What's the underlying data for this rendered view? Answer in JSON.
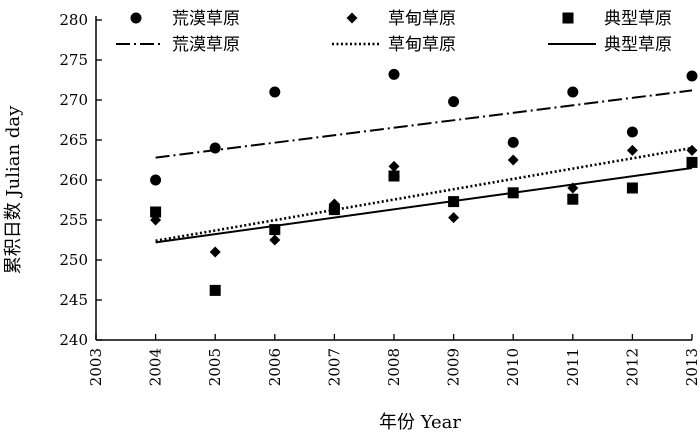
{
  "chart_data": {
    "type": "scatter",
    "x": [
      2004,
      2005,
      2006,
      2007,
      2008,
      2009,
      2010,
      2011,
      2012,
      2013
    ],
    "xlim": [
      2003,
      2013
    ],
    "ylim": [
      240,
      280
    ],
    "xticks": [
      "2003",
      "2004",
      "2005",
      "2006",
      "2007",
      "2008",
      "2009",
      "2010",
      "2011",
      "2012",
      "2013"
    ],
    "yticks": [
      "240",
      "245",
      "250",
      "255",
      "260",
      "265",
      "270",
      "275",
      "280"
    ],
    "xlabel": "年份 Year",
    "ylabel": "累积日数 Julian day",
    "grid": false,
    "legend_position": "top",
    "series": [
      {
        "name": "荒漠草原",
        "marker": "circle",
        "values": [
          260,
          264,
          271,
          256.5,
          273.2,
          269.8,
          264.7,
          271,
          266,
          273
        ],
        "trend": {
          "start": 262.8,
          "end": 271.2,
          "dash": "dashdot"
        }
      },
      {
        "name": "草甸草原",
        "marker": "diamond",
        "values": [
          255,
          251,
          252.5,
          257,
          261.7,
          255.3,
          262.5,
          259,
          263.7,
          263.7
        ],
        "trend": {
          "start": 252.4,
          "end": 264,
          "dash": "dotted"
        }
      },
      {
        "name": "典型草原",
        "marker": "square",
        "values": [
          256,
          246.2,
          253.8,
          256.3,
          260.5,
          257.3,
          258.4,
          257.6,
          259,
          262.2
        ],
        "trend": {
          "start": 252.2,
          "end": 261.5,
          "dash": "solid"
        }
      }
    ]
  }
}
